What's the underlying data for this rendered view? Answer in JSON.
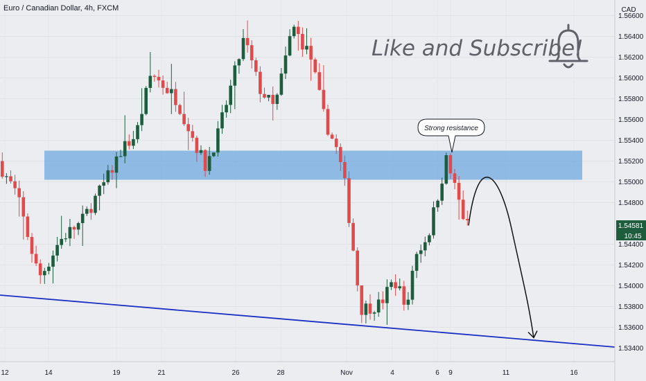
{
  "header": {
    "title": "Euro / Canadian Dollar, 4h, FXCM"
  },
  "price_axis": {
    "currency": "CAD",
    "last_price": "1.54581",
    "countdown": "10:45"
  },
  "annotations": {
    "promo": "Like and Subscribe!",
    "callout": "Strong resistance"
  },
  "colors": {
    "up": "#1e5c3e",
    "down": "#e04a4a",
    "zone": "#6fa8e0",
    "trendline": "#1a2fc4",
    "background": "#ebedf0",
    "last_price_bg": "#1e5c3e"
  },
  "chart_data": {
    "type": "candlestick",
    "symbol": "EURCAD",
    "timeframe": "4h",
    "ylim": [
      1.5327,
      1.5675
    ],
    "y_ticks": [
      "1.56600",
      "1.56400",
      "1.56200",
      "1.56000",
      "1.55800",
      "1.55600",
      "1.55400",
      "1.55200",
      "1.55000",
      "1.54800",
      "1.54400",
      "1.54200",
      "1.54000",
      "1.53800",
      "1.53600",
      "1.53400"
    ],
    "x_ticks": [
      "12",
      "14",
      "19",
      "21",
      "26",
      "28",
      "Nov",
      "4",
      "6",
      "9",
      "11",
      "16"
    ],
    "resistance_zone": [
      1.5502,
      1.553
    ],
    "trendline": [
      {
        "x": "12",
        "y": 1.5391
      },
      {
        "x": "16",
        "y": 1.5341
      }
    ],
    "projection_target": 1.535,
    "anchors": [
      {
        "x": "12",
        "price": 1.552
      },
      {
        "x": "12",
        "price": 1.5488
      },
      {
        "x": "14",
        "price": 1.5408
      },
      {
        "x": "14",
        "price": 1.542
      },
      {
        "x": "14",
        "price": 1.5442
      },
      {
        "x": "14",
        "price": 1.545
      },
      {
        "x": "19",
        "price": 1.546
      },
      {
        "x": "19",
        "price": 1.5505
      },
      {
        "x": "19",
        "price": 1.553
      },
      {
        "x": "21",
        "price": 1.5545
      },
      {
        "x": "21",
        "price": 1.5605
      },
      {
        "x": "21",
        "price": 1.558
      },
      {
        "x": "21",
        "price": 1.5515
      },
      {
        "x": "26",
        "price": 1.5545
      },
      {
        "x": "26",
        "price": 1.5638
      },
      {
        "x": "26",
        "price": 1.559
      },
      {
        "x": "28",
        "price": 1.557
      },
      {
        "x": "28",
        "price": 1.565
      },
      {
        "x": "28",
        "price": 1.562
      },
      {
        "x": "28",
        "price": 1.556
      },
      {
        "x": "28",
        "price": 1.553
      },
      {
        "x": "Nov",
        "price": 1.5503
      },
      {
        "x": "Nov",
        "price": 1.5443
      },
      {
        "x": "Nov",
        "price": 1.5378
      },
      {
        "x": "4",
        "price": 1.5382
      },
      {
        "x": "4",
        "price": 1.5405
      },
      {
        "x": "6",
        "price": 1.538
      },
      {
        "x": "6",
        "price": 1.5425
      },
      {
        "x": "6",
        "price": 1.545
      },
      {
        "x": "9",
        "price": 1.5522
      },
      {
        "x": "9",
        "price": 1.549
      },
      {
        "x": "9",
        "price": 1.5458
      }
    ]
  }
}
